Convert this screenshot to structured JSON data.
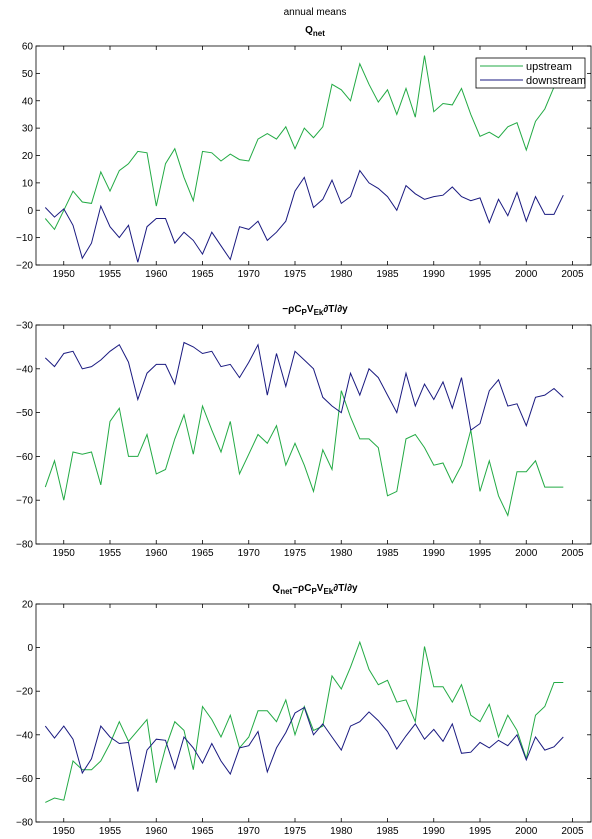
{
  "figure": {
    "suptitle": "annual means",
    "legend_entries": [
      {
        "label": "upstream",
        "color": "#22aa44"
      },
      {
        "label": "downstream",
        "color": "#1a1a80"
      }
    ]
  },
  "chart_data": [
    {
      "type": "line",
      "title_parts": {
        "base": "Q",
        "sub": "net"
      },
      "xlim": [
        1947,
        2007
      ],
      "ylim": [
        -20,
        60
      ],
      "xticks": [
        1950,
        1955,
        1960,
        1965,
        1970,
        1975,
        1980,
        1985,
        1990,
        1995,
        2000,
        2005
      ],
      "yticks": [
        -20,
        -10,
        0,
        10,
        20,
        30,
        40,
        50,
        60
      ],
      "legend": "top-right",
      "x": [
        1948,
        1949,
        1950,
        1951,
        1952,
        1953,
        1954,
        1955,
        1956,
        1957,
        1958,
        1959,
        1960,
        1961,
        1962,
        1963,
        1964,
        1965,
        1966,
        1967,
        1968,
        1969,
        1970,
        1971,
        1972,
        1973,
        1974,
        1975,
        1976,
        1977,
        1978,
        1979,
        1980,
        1981,
        1982,
        1983,
        1984,
        1985,
        1986,
        1987,
        1988,
        1989,
        1990,
        1991,
        1992,
        1993,
        1994,
        1995,
        1996,
        1997,
        1998,
        1999,
        2000,
        2001,
        2002,
        2003,
        2004
      ],
      "series": [
        {
          "name": "upstream",
          "color": "#22aa44",
          "values": [
            -3,
            -7,
            0,
            7,
            3,
            2.5,
            14,
            7,
            14.5,
            17,
            21.5,
            21,
            1.5,
            17,
            22.5,
            12,
            3.5,
            21.5,
            21,
            18,
            20.5,
            18.5,
            18,
            26,
            28,
            26,
            30.5,
            22.5,
            30,
            26.5,
            30.5,
            46,
            44,
            40,
            53.5,
            46,
            39.5,
            44,
            35,
            44.5,
            34,
            56.5,
            36,
            39,
            38.5,
            44.5,
            35,
            27,
            28.5,
            26.5,
            30.5,
            32,
            22,
            32.5,
            37,
            45,
            45
          ]
        },
        {
          "name": "downstream",
          "color": "#1a1a80",
          "values": [
            1,
            -2.5,
            0.5,
            -5.5,
            -17.5,
            -12,
            1.5,
            -6,
            -10,
            -5.5,
            -19,
            -6,
            -3,
            -3,
            -12,
            -8,
            -11,
            -16,
            -8,
            -13,
            -18,
            -6,
            -7,
            -4,
            -11,
            -8,
            -4,
            7,
            12,
            1,
            4,
            11,
            2.5,
            5,
            14.5,
            10,
            8,
            5,
            0,
            9,
            6,
            4,
            5,
            5.5,
            8.5,
            5,
            3.5,
            4.5,
            -4.5,
            4,
            -2,
            6.5,
            -4,
            5,
            -1.5,
            -1.5,
            5.5
          ]
        }
      ]
    },
    {
      "type": "line",
      "title_parts": {
        "prefix": "−ρC",
        "sub1": "P",
        "mid": "V",
        "sub2": "Ek",
        "suffix": "∂T/∂y"
      },
      "xlim": [
        1947,
        2007
      ],
      "ylim": [
        -80,
        -30
      ],
      "xticks": [
        1950,
        1955,
        1960,
        1965,
        1970,
        1975,
        1980,
        1985,
        1990,
        1995,
        2000,
        2005
      ],
      "yticks": [
        -80,
        -70,
        -60,
        -50,
        -40,
        -30
      ],
      "x": [
        1948,
        1949,
        1950,
        1951,
        1952,
        1953,
        1954,
        1955,
        1956,
        1957,
        1958,
        1959,
        1960,
        1961,
        1962,
        1963,
        1964,
        1965,
        1966,
        1967,
        1968,
        1969,
        1970,
        1971,
        1972,
        1973,
        1974,
        1975,
        1976,
        1977,
        1978,
        1979,
        1980,
        1981,
        1982,
        1983,
        1984,
        1985,
        1986,
        1987,
        1988,
        1989,
        1990,
        1991,
        1992,
        1993,
        1994,
        1995,
        1996,
        1997,
        1998,
        1999,
        2000,
        2001,
        2002,
        2003,
        2004
      ],
      "series": [
        {
          "name": "upstream",
          "color": "#22aa44",
          "values": [
            -67,
            -61,
            -70,
            -59,
            -59.5,
            -59,
            -66.5,
            -52,
            -49,
            -60,
            -60,
            -55,
            -64,
            -63,
            -56,
            -50.5,
            -59.5,
            -48.5,
            -54,
            -59,
            -52,
            -64,
            -59.5,
            -55,
            -57,
            -53,
            -62,
            -57,
            -62,
            -68,
            -58.5,
            -63,
            -45,
            -51,
            -56,
            -56,
            -58,
            -69,
            -68,
            -56,
            -55,
            -58,
            -62,
            -61.5,
            -66,
            -62,
            -54,
            -68,
            -61,
            -69,
            -73.5,
            -63.5,
            -63.5,
            -61,
            -67,
            -67,
            -67
          ]
        },
        {
          "name": "downstream",
          "color": "#1a1a80",
          "values": [
            -37.5,
            -39.5,
            -36.5,
            -36,
            -40,
            -39.5,
            -38,
            -36,
            -34.5,
            -38.5,
            -47,
            -41,
            -39,
            -39,
            -43.5,
            -34,
            -35,
            -36.5,
            -36,
            -39.5,
            -39,
            -42,
            -38.5,
            -34.5,
            -46,
            -36.5,
            -44,
            -36,
            -38,
            -40,
            -46.5,
            -48.5,
            -50,
            -41,
            -46,
            -40,
            -42,
            -46,
            -50,
            -41,
            -48.5,
            -43.5,
            -47,
            -43,
            -49,
            -42,
            -54,
            -52.5,
            -45,
            -42.5,
            -48.5,
            -48,
            -53,
            -46.5,
            -46,
            -44.5,
            -46.5
          ]
        }
      ]
    },
    {
      "type": "line",
      "title_parts": {
        "base": "Q",
        "sub": "net",
        "dash": "−ρC",
        "sub1": "P",
        "mid": "V",
        "sub2": "Ek",
        "suffix": "∂T/∂y"
      },
      "xlim": [
        1947,
        2007
      ],
      "ylim": [
        -80,
        20
      ],
      "xticks": [
        1950,
        1955,
        1960,
        1965,
        1970,
        1975,
        1980,
        1985,
        1990,
        1995,
        2000,
        2005
      ],
      "yticks": [
        -80,
        -60,
        -40,
        -20,
        0,
        20
      ],
      "x": [
        1948,
        1949,
        1950,
        1951,
        1952,
        1953,
        1954,
        1955,
        1956,
        1957,
        1958,
        1959,
        1960,
        1961,
        1962,
        1963,
        1964,
        1965,
        1966,
        1967,
        1968,
        1969,
        1970,
        1971,
        1972,
        1973,
        1974,
        1975,
        1976,
        1977,
        1978,
        1979,
        1980,
        1981,
        1982,
        1983,
        1984,
        1985,
        1986,
        1987,
        1988,
        1989,
        1990,
        1991,
        1992,
        1993,
        1994,
        1995,
        1996,
        1997,
        1998,
        1999,
        2000,
        2001,
        2002,
        2003,
        2004
      ],
      "series": [
        {
          "name": "upstream",
          "color": "#22aa44",
          "values": [
            -71,
            -69,
            -70,
            -52,
            -56,
            -56,
            -52,
            -44,
            -34,
            -43,
            -38,
            -33,
            -62,
            -46,
            -34,
            -38,
            -56,
            -27,
            -33,
            -41,
            -31,
            -46,
            -41,
            -29,
            -29,
            -34,
            -24,
            -40,
            -27,
            -38,
            -36,
            -13,
            -19,
            -9,
            2.5,
            -10,
            -17,
            -15,
            -25,
            -24,
            -34,
            0.5,
            -18,
            -18,
            -25,
            -17,
            -31,
            -34,
            -26,
            -41,
            -31,
            -38,
            -51,
            -31,
            -27,
            -16,
            -16
          ]
        },
        {
          "name": "downstream",
          "color": "#1a1a80",
          "values": [
            -36,
            -41.5,
            -36,
            -42,
            -57.5,
            -51,
            -36,
            -41,
            -44,
            -43.5,
            -66,
            -47,
            -42,
            -42.5,
            -55.5,
            -41,
            -46,
            -53,
            -44,
            -52,
            -58,
            -46,
            -45,
            -38.5,
            -57,
            -46,
            -39,
            -30,
            -27.5,
            -40,
            -35,
            -41,
            -47,
            -36,
            -34,
            -29.5,
            -33.5,
            -38.5,
            -46.5,
            -40.5,
            -35,
            -42,
            -37.5,
            -43,
            -35,
            -48.5,
            -48,
            -43.5,
            -46,
            -42.5,
            -45,
            -40,
            -51.5,
            -41,
            -47,
            -45.5,
            -41
          ]
        }
      ]
    }
  ]
}
